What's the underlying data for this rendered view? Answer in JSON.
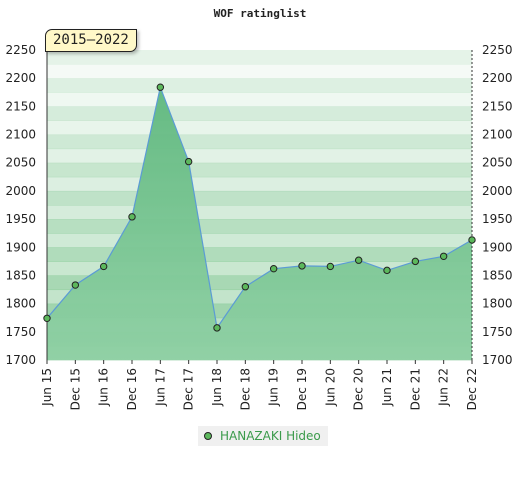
{
  "chart_data": {
    "type": "area",
    "title": "WOF ratinglist",
    "period_label": "2015–2022",
    "categories": [
      "Jun 15",
      "Dec 15",
      "Jun 16",
      "Dec 16",
      "Jun 17",
      "Dec 17",
      "Jun 18",
      "Dec 18",
      "Jun 19",
      "Dec 19",
      "Jun 20",
      "Dec 20",
      "Jun 21",
      "Dec 21",
      "Jun 22",
      "Dec 22"
    ],
    "series": [
      {
        "name": "HANAZAKI Hideo",
        "values": [
          1774,
          1833,
          1866,
          1954,
          2184,
          2052,
          1757,
          1830,
          1862,
          1867,
          1866,
          1877,
          1859,
          1875,
          1884,
          1913
        ]
      }
    ],
    "ylim": [
      1700,
      2250
    ],
    "yticks": [
      1700,
      1750,
      1800,
      1850,
      1900,
      1950,
      2000,
      2050,
      2100,
      2150,
      2200,
      2250
    ],
    "grid": "horizontal bands",
    "legend_position": "bottom",
    "colors": {
      "line": "#5b9bd5",
      "fill": "#6cc08a",
      "marker": "#5cb85c",
      "legend_text": "#3a9a4a",
      "badge_bg": "#fff8c8"
    }
  }
}
